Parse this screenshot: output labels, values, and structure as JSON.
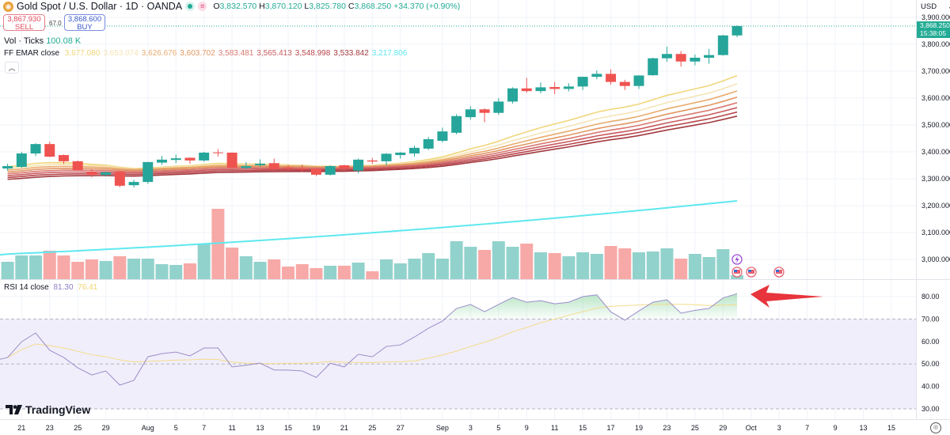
{
  "header": {
    "symbol_title": "Gold Spot / U.S. Dollar · 1D · OANDA",
    "ohlc": {
      "o_label": "O",
      "o": "3,832.570",
      "h_label": "H",
      "h": "3,870.120",
      "l_label": "L",
      "l": "3,825.780",
      "c_label": "C",
      "c": "3,868.250",
      "change": "+34.370 (+0.90%)"
    },
    "sell_price": "3,867.930",
    "sell_label": "SELL",
    "buy_price": "3,868.600",
    "buy_label": "BUY",
    "spread": "67.0",
    "pill_equal": "="
  },
  "volume_legend": {
    "label": "Vol · Ticks",
    "value": "100.08 K"
  },
  "ema_legend": {
    "label": "FF EMAR close",
    "values": [
      "3,677.080",
      "3,653.074",
      "3,626.676",
      "3,603.702",
      "3,583.481",
      "3,565.413",
      "3,548.998",
      "3,533.842",
      "3,217.806"
    ]
  },
  "rsi_legend": {
    "label": "RSI 14 close",
    "value": "81.30",
    "ma_value": "76.41"
  },
  "price_axis": {
    "currency": "USD",
    "labels": [
      "3,900.000",
      "3,800.000",
      "3,700.000",
      "3,600.000",
      "3,500.000",
      "3,400.000",
      "3,300.000",
      "3,200.000",
      "3,100.000",
      "3,000.000"
    ],
    "last_price": "3,868.250",
    "countdown": "15:38:05"
  },
  "rsi_axis": {
    "labels": [
      "80.00",
      "70.00",
      "60.00",
      "50.00",
      "40.00",
      "30.00"
    ]
  },
  "brand": "TradingView",
  "colors": {
    "up": "#26a69a",
    "down": "#ef5350",
    "vol_up": "#92d2cc",
    "vol_down": "#f7a9a7",
    "rsi": "#9b8dc9",
    "rsi_ma": "#f3dc8a",
    "cyan": "#5ee8ef",
    "arrow": "#e8343c",
    "ema": [
      "#f0d67a",
      "#f5e4b5",
      "#e9ab6e",
      "#e29763",
      "#d97870",
      "#c95a5e",
      "#b8464c",
      "#a33a40"
    ]
  },
  "chart_data": {
    "type": "candlestick",
    "title": "Gold Spot / U.S. Dollar · 1D · OANDA",
    "ylim": [
      3000,
      3900
    ],
    "x_labels": [
      {
        "i": 1,
        "t": "21"
      },
      {
        "i": 3,
        "t": "23"
      },
      {
        "i": 5,
        "t": "25"
      },
      {
        "i": 7,
        "t": "29"
      },
      {
        "i": 10,
        "t": "Aug"
      },
      {
        "i": 12,
        "t": "5"
      },
      {
        "i": 14,
        "t": "7"
      },
      {
        "i": 16,
        "t": "11"
      },
      {
        "i": 18,
        "t": "13"
      },
      {
        "i": 20,
        "t": "15"
      },
      {
        "i": 22,
        "t": "19"
      },
      {
        "i": 24,
        "t": "21"
      },
      {
        "i": 26,
        "t": "25"
      },
      {
        "i": 28,
        "t": "27"
      },
      {
        "i": 31,
        "t": "Sep"
      },
      {
        "i": 33,
        "t": "3"
      },
      {
        "i": 35,
        "t": "5"
      },
      {
        "i": 37,
        "t": "9"
      },
      {
        "i": 39,
        "t": "11"
      },
      {
        "i": 41,
        "t": "15"
      },
      {
        "i": 43,
        "t": "17"
      },
      {
        "i": 45,
        "t": "19"
      },
      {
        "i": 47,
        "t": "23"
      },
      {
        "i": 49,
        "t": "25"
      },
      {
        "i": 51,
        "t": "29"
      },
      {
        "i": 53,
        "t": "Oct"
      },
      {
        "i": 55,
        "t": "3"
      },
      {
        "i": 57,
        "t": "7"
      },
      {
        "i": 59,
        "t": "9"
      },
      {
        "i": 61,
        "t": "13"
      },
      {
        "i": 63,
        "t": "15"
      }
    ],
    "ohlc": [
      [
        3338,
        3356,
        3330,
        3347
      ],
      [
        3344,
        3400,
        3340,
        3394
      ],
      [
        3394,
        3432,
        3385,
        3429
      ],
      [
        3429,
        3438,
        3380,
        3382
      ],
      [
        3388,
        3390,
        3355,
        3365
      ],
      [
        3365,
        3368,
        3330,
        3332
      ],
      [
        3326,
        3335,
        3305,
        3315
      ],
      [
        3314,
        3326,
        3308,
        3324
      ],
      [
        3326,
        3330,
        3268,
        3274
      ],
      [
        3276,
        3296,
        3268,
        3288
      ],
      [
        3288,
        3363,
        3281,
        3362
      ],
      [
        3360,
        3385,
        3352,
        3371
      ],
      [
        3370,
        3390,
        3358,
        3376
      ],
      [
        3378,
        3380,
        3356,
        3368
      ],
      [
        3368,
        3400,
        3363,
        3397
      ],
      [
        3398,
        3410,
        3383,
        3396
      ],
      [
        3397,
        3398,
        3340,
        3341
      ],
      [
        3340,
        3362,
        3335,
        3347
      ],
      [
        3350,
        3372,
        3345,
        3356
      ],
      [
        3358,
        3375,
        3330,
        3336
      ],
      [
        3342,
        3352,
        3332,
        3338
      ],
      [
        3338,
        3352,
        3325,
        3335
      ],
      [
        3336,
        3340,
        3310,
        3315
      ],
      [
        3315,
        3350,
        3312,
        3347
      ],
      [
        3350,
        3352,
        3330,
        3338
      ],
      [
        3330,
        3375,
        3320,
        3371
      ],
      [
        3368,
        3377,
        3355,
        3364
      ],
      [
        3365,
        3395,
        3350,
        3393
      ],
      [
        3388,
        3400,
        3375,
        3397
      ],
      [
        3394,
        3423,
        3382,
        3415
      ],
      [
        3412,
        3455,
        3407,
        3447
      ],
      [
        3441,
        3490,
        3435,
        3476
      ],
      [
        3471,
        3540,
        3465,
        3533
      ],
      [
        3529,
        3570,
        3520,
        3558
      ],
      [
        3558,
        3562,
        3510,
        3545
      ],
      [
        3545,
        3600,
        3538,
        3587
      ],
      [
        3587,
        3640,
        3580,
        3636
      ],
      [
        3636,
        3675,
        3620,
        3626
      ],
      [
        3626,
        3658,
        3618,
        3640
      ],
      [
        3641,
        3660,
        3615,
        3634
      ],
      [
        3634,
        3655,
        3625,
        3643
      ],
      [
        3643,
        3680,
        3630,
        3679
      ],
      [
        3679,
        3703,
        3670,
        3690
      ],
      [
        3690,
        3707,
        3650,
        3660
      ],
      [
        3660,
        3668,
        3630,
        3645
      ],
      [
        3645,
        3685,
        3634,
        3684
      ],
      [
        3685,
        3750,
        3683,
        3748
      ],
      [
        3748,
        3791,
        3735,
        3764
      ],
      [
        3764,
        3775,
        3717,
        3736
      ],
      [
        3736,
        3762,
        3722,
        3750
      ],
      [
        3750,
        3783,
        3728,
        3760
      ],
      [
        3760,
        3835,
        3758,
        3833
      ],
      [
        3833,
        3870,
        3826,
        3868
      ]
    ],
    "volume_k": [
      440,
      600,
      600,
      720,
      600,
      440,
      500,
      460,
      580,
      520,
      520,
      380,
      360,
      400,
      900,
      1780,
      800,
      580,
      440,
      500,
      320,
      380,
      280,
      340,
      340,
      420,
      200,
      500,
      400,
      520,
      660,
      520,
      960,
      820,
      740,
      960,
      820,
      900,
      680,
      660,
      580,
      680,
      640,
      840,
      780,
      680,
      700,
      780,
      520,
      640,
      560,
      760,
      100.08
    ],
    "ema_periods": [
      20,
      25,
      30,
      35,
      40,
      45,
      50,
      55
    ],
    "ema_seed": [
      3345,
      3338,
      3331,
      3324,
      3317,
      3310,
      3303,
      3296
    ],
    "long_ema": {
      "start": 3020,
      "end": 3217.806
    },
    "rsi": [
      52.9,
      59.9,
      63.8,
      56.1,
      52.9,
      48.3,
      45.1,
      46.9,
      40.6,
      42.7,
      53.2,
      54.6,
      55.3,
      53.6,
      57.1,
      57.1,
      48.7,
      49.4,
      50.4,
      47.3,
      47.3,
      46.9,
      44.0,
      50.3,
      48.7,
      54.3,
      53.2,
      57.8,
      58.5,
      62.0,
      65.9,
      69.1,
      74.7,
      76.5,
      73.3,
      76.5,
      79.6,
      77.5,
      78.2,
      76.8,
      77.5,
      80.0,
      80.8,
      73.2,
      69.5,
      73.6,
      77.5,
      78.6,
      72.6,
      73.9,
      74.7,
      79.4,
      81.3
    ],
    "rsi_ma_period": 14,
    "rsi_bands": {
      "upper": 70,
      "middle": 50,
      "lower": 30
    },
    "rsi_ylim": [
      25,
      85
    ]
  }
}
